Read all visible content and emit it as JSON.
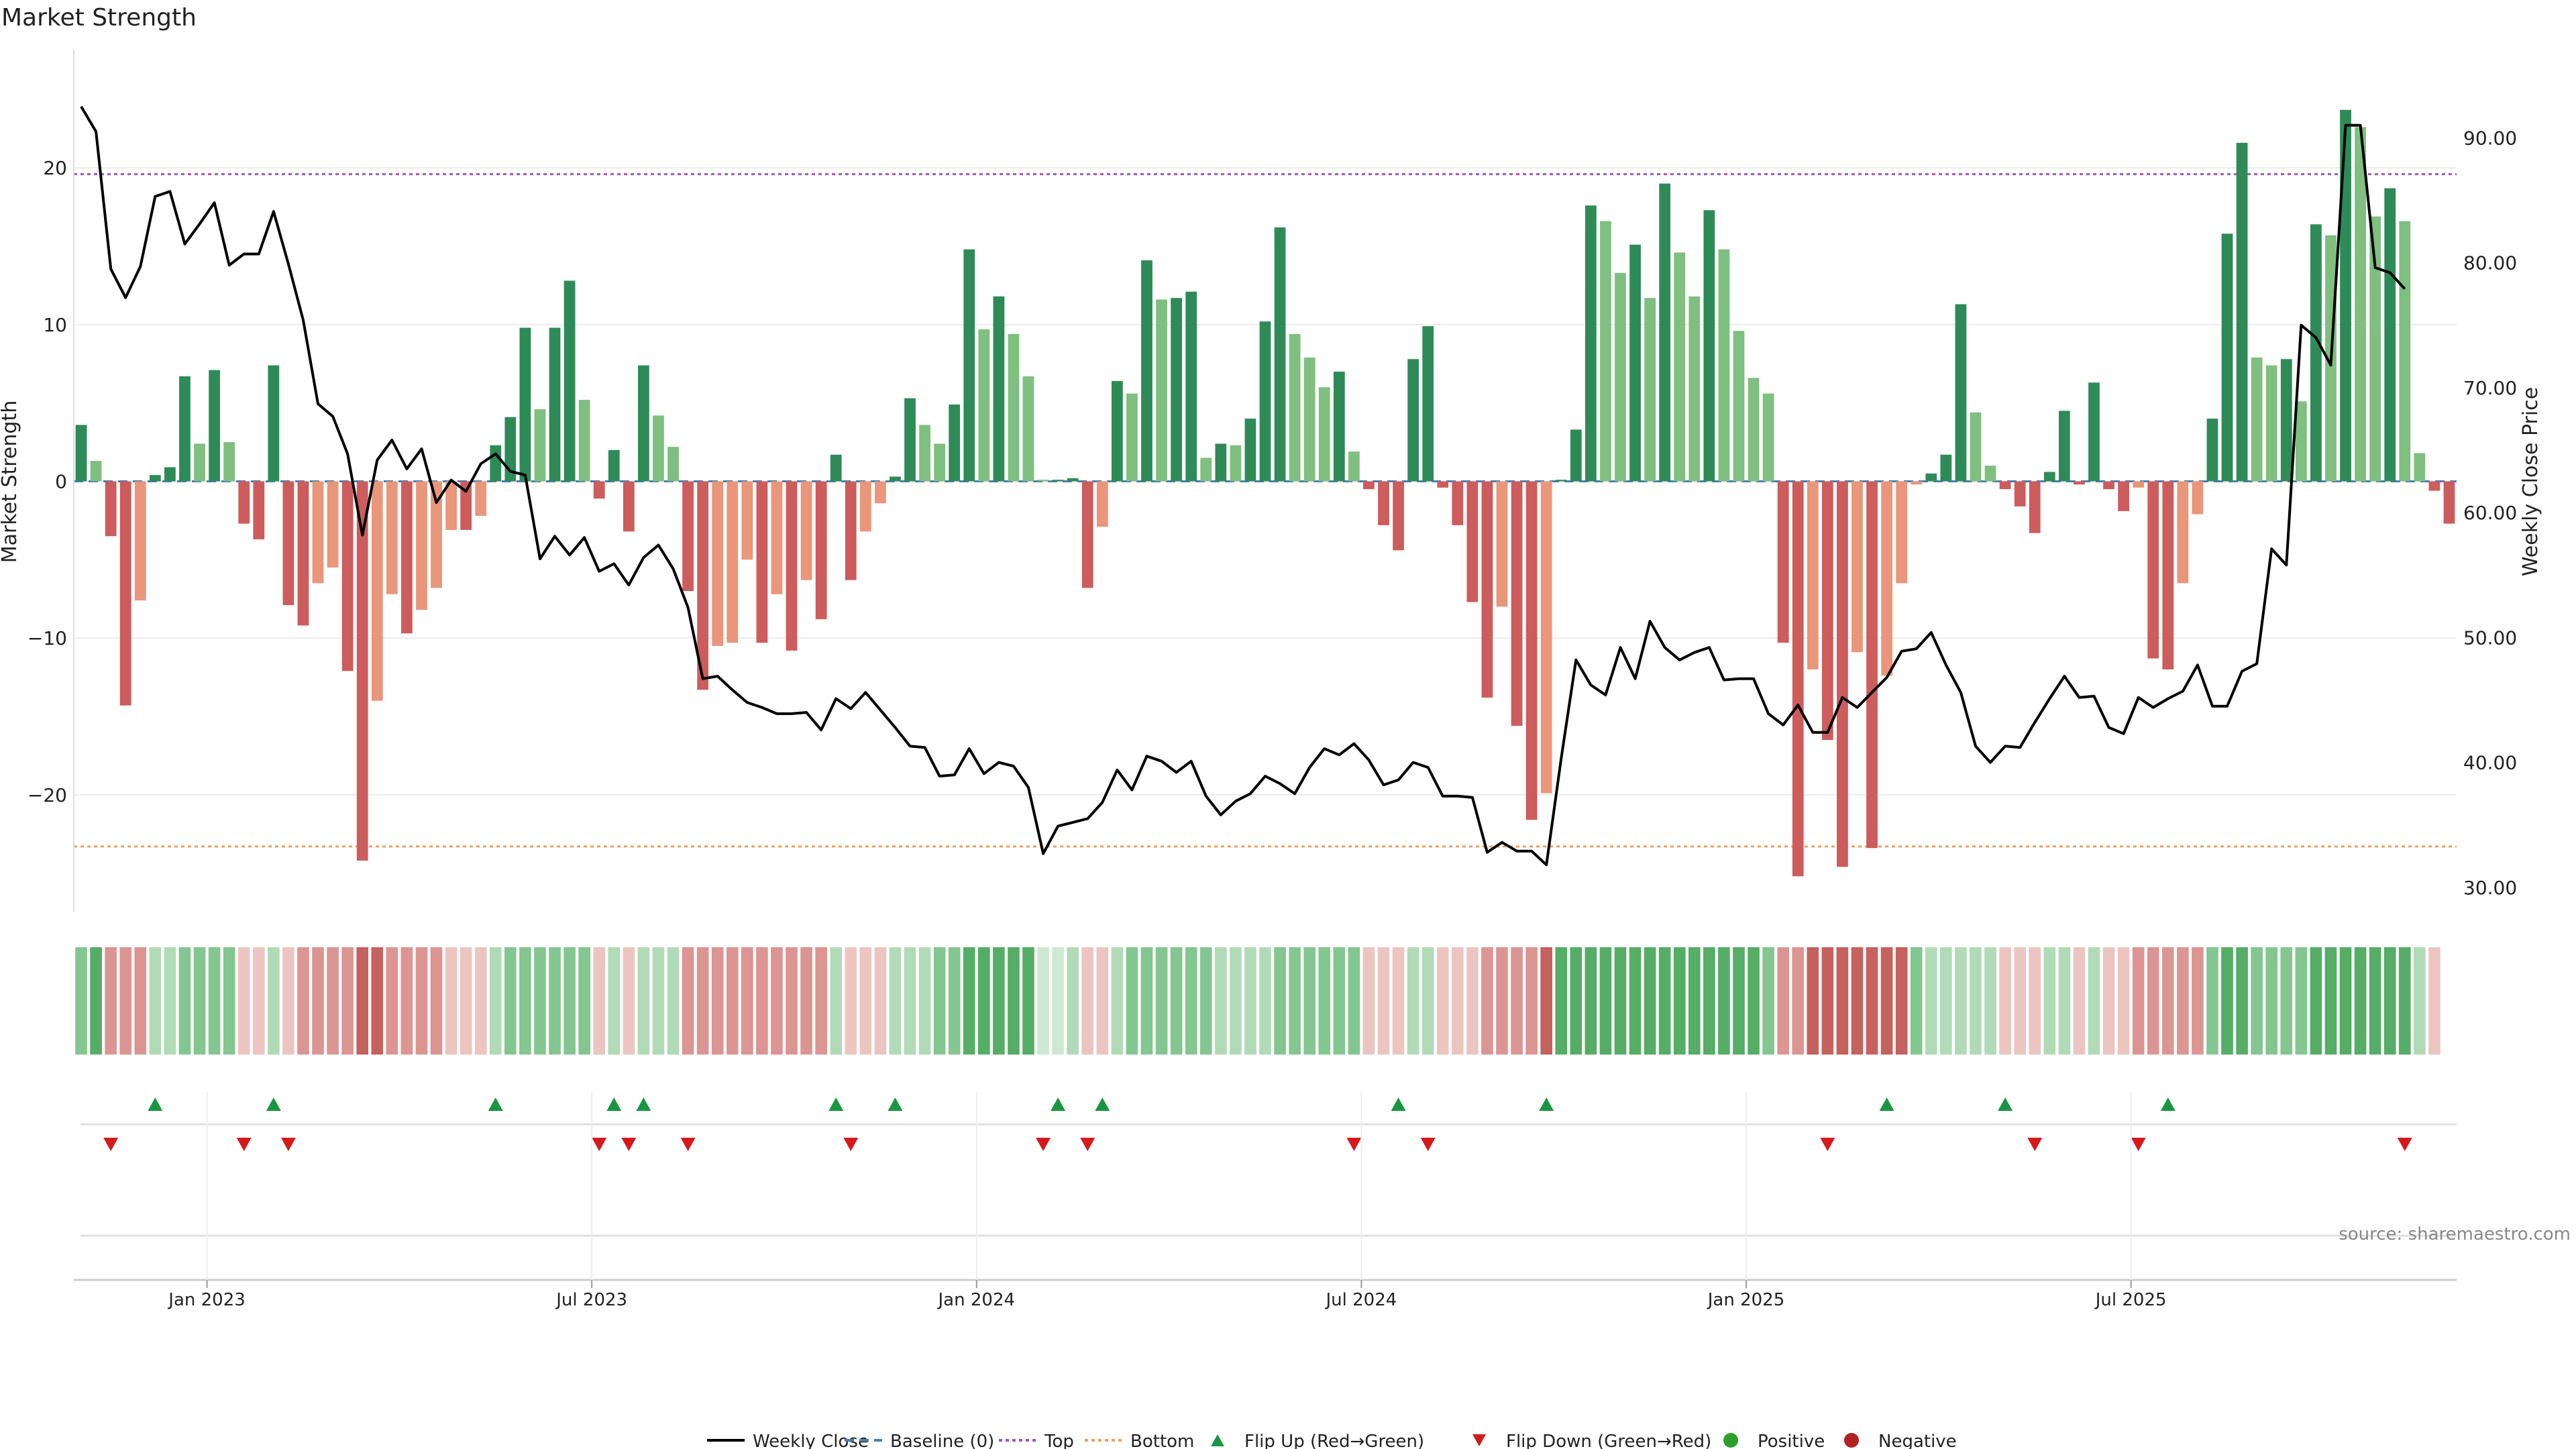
{
  "chart_data": {
    "type": "bar",
    "title": "Market Strength",
    "ylabel": "Market Strength",
    "y2label": "Weekly Close Price",
    "ylim": [
      -27.5,
      27.5
    ],
    "y2lim": [
      28,
      97
    ],
    "yticks": [
      20,
      10,
      0,
      -10,
      -20
    ],
    "y2ticks": [
      30,
      40,
      50,
      60,
      70,
      80,
      90
    ],
    "ytick_labels": [
      "20",
      "10",
      "0",
      "−10",
      "−20"
    ],
    "y2tick_labels": [
      "30.00",
      "40.00",
      "50.00",
      "60.00",
      "70.00",
      "80.00",
      "90.00"
    ],
    "top_threshold": 19.6,
    "bottom_threshold": -23.3,
    "x_ticks": [
      "Jan 2023",
      "Jul 2023",
      "Jan 2024",
      "Jul 2024",
      "Jan 2025",
      "Jul 2025"
    ],
    "grid": true,
    "legend_position": "bottom",
    "source": "source: sharemaestro.com",
    "weeks": 158,
    "strength": [
      3.6,
      1.3,
      -3.5,
      -14.3,
      -7.6,
      0.4,
      0.9,
      6.7,
      2.4,
      7.1,
      2.5,
      -2.7,
      -3.7,
      7.4,
      -7.9,
      -9.2,
      -6.5,
      -5.5,
      -12.1,
      -24.2,
      -14.0,
      -7.2,
      -9.7,
      -8.2,
      -6.8,
      -3.1,
      -3.1,
      -2.2,
      2.3,
      4.1,
      9.8,
      4.6,
      9.8,
      12.8,
      5.2,
      -1.1,
      2.0,
      -3.2,
      7.4,
      4.2,
      2.2,
      -7.0,
      -13.3,
      -10.5,
      -10.3,
      -5.0,
      -10.3,
      -7.2,
      -10.8,
      -6.3,
      -8.8,
      1.7,
      -6.3,
      -3.2,
      -1.4,
      0.3,
      5.3,
      3.6,
      2.4,
      4.9,
      14.8,
      9.7,
      11.8,
      9.4,
      6.7,
      0.1,
      0.1,
      0.2,
      -6.8,
      -2.9,
      6.4,
      5.6,
      14.1,
      11.6,
      11.7,
      12.1,
      1.5,
      2.4,
      2.3,
      4.0,
      10.2,
      16.2,
      9.4,
      7.9,
      6.0,
      7.0,
      1.9,
      -0.5,
      -2.8,
      -4.4,
      7.8,
      9.9,
      -0.4,
      -2.8,
      -7.7,
      -13.8,
      -8.0,
      -15.6,
      -21.6,
      -19.9,
      0.1,
      3.3,
      17.6,
      16.6,
      13.3,
      15.1,
      11.7,
      19.0,
      14.6,
      11.8,
      17.3,
      14.8,
      9.6,
      6.6,
      5.6,
      -10.3,
      -25.2,
      -12.0,
      -16.5,
      -24.6,
      -10.9,
      -23.4,
      -12.4,
      -6.5,
      -0.2,
      0.5,
      1.7,
      11.3,
      4.4,
      1.0,
      -0.5,
      -1.6,
      -3.3,
      0.6,
      4.5,
      -0.2,
      6.3,
      -0.5,
      -1.9,
      -0.4,
      -11.3,
      -12.0,
      -6.5,
      -2.1,
      4.0,
      15.8,
      21.6,
      7.9,
      7.4,
      7.8,
      5.1,
      16.4,
      15.7,
      23.7,
      22.6,
      16.9,
      18.7,
      16.6,
      1.8,
      -0.6,
      -2.7
    ],
    "close": [
      92.5,
      90.5,
      79.5,
      77.2,
      79.7,
      85.3,
      85.7,
      81.5,
      83.1,
      84.8,
      79.8,
      80.7,
      80.7,
      84.1,
      79.9,
      75.4,
      68.7,
      67.7,
      64.7,
      58.2,
      64.2,
      65.8,
      63.5,
      65.1,
      60.8,
      62.6,
      61.7,
      63.9,
      64.7,
      63.3,
      63.0,
      56.3,
      58.1,
      56.6,
      58.0,
      55.3,
      55.9,
      54.2,
      56.4,
      57.4,
      55.5,
      52.4,
      46.7,
      46.9,
      45.8,
      44.8,
      44.4,
      43.9,
      43.9,
      44.0,
      42.6,
      45.1,
      44.3,
      45.6,
      44.2,
      42.8,
      41.3,
      41.2,
      38.9,
      39.0,
      41.1,
      39.1,
      40.0,
      39.7,
      38.0,
      32.7,
      34.9,
      35.2,
      35.5,
      36.8,
      39.4,
      37.8,
      40.5,
      40.1,
      39.2,
      40.1,
      37.3,
      35.8,
      36.9,
      37.5,
      38.9,
      38.3,
      37.5,
      39.6,
      41.1,
      40.6,
      41.5,
      40.2,
      38.2,
      38.6,
      40.0,
      39.6,
      37.3,
      37.3,
      37.2,
      32.8,
      33.6,
      32.9,
      32.9,
      31.8,
      40.3,
      48.2,
      46.2,
      45.4,
      49.2,
      46.7,
      51.3,
      49.2,
      48.2,
      48.8,
      49.2,
      46.6,
      46.7,
      46.7,
      43.9,
      43.0,
      44.6,
      42.4,
      42.4,
      45.2,
      44.4,
      45.6,
      46.8,
      48.9,
      49.1,
      50.4,
      47.8,
      45.6,
      41.3,
      40.0,
      41.3,
      41.2,
      43.2,
      45.1,
      46.9,
      45.2,
      45.3,
      42.8,
      42.3,
      45.2,
      44.4,
      45.1,
      45.7,
      47.8,
      44.5,
      44.5,
      47.3,
      47.9,
      57.1,
      55.8,
      75.0,
      74.0,
      71.8,
      91.0,
      91.0,
      79.6,
      79.2,
      77.9
    ],
    "flip_up": [
      5,
      13,
      28,
      36,
      38,
      51,
      55,
      66,
      69,
      89,
      99,
      122,
      130,
      141
    ],
    "flip_down": [
      2,
      11,
      14,
      35,
      37,
      41,
      52,
      65,
      68,
      86,
      91,
      118,
      132,
      139,
      157
    ],
    "heat_shade": [
      2,
      3,
      2,
      2,
      2,
      1,
      1,
      2,
      2,
      2,
      2,
      1,
      1,
      1,
      1,
      2,
      2,
      2,
      2,
      3,
      3,
      2,
      2,
      2,
      2,
      1,
      1,
      1,
      1,
      2,
      2,
      2,
      2,
      2,
      2,
      1,
      1,
      1,
      1,
      1,
      1,
      2,
      2,
      2,
      2,
      2,
      2,
      2,
      2,
      2,
      2,
      1,
      1,
      1,
      1,
      1,
      1,
      1,
      2,
      2,
      3,
      3,
      3,
      3,
      3,
      0,
      0,
      1,
      1,
      1,
      1,
      2,
      2,
      2,
      2,
      2,
      2,
      1,
      1,
      1,
      1,
      2,
      2,
      2,
      2,
      2,
      2,
      1,
      1,
      1,
      1,
      1,
      1,
      1,
      1,
      2,
      2,
      2,
      2,
      3,
      3,
      3,
      3,
      3,
      3,
      3,
      3,
      3,
      3,
      3,
      3,
      3,
      3,
      3,
      2,
      2,
      2,
      3,
      3,
      3,
      3,
      3,
      3,
      3,
      2,
      1,
      1,
      1,
      1,
      1,
      1,
      1,
      1,
      1,
      1,
      1,
      1,
      1,
      1,
      2,
      2,
      2,
      2,
      2,
      2,
      3,
      3,
      2,
      2,
      2,
      2,
      3,
      3,
      3,
      3,
      3,
      3,
      3,
      1,
      1
    ],
    "heat_sign": [
      1,
      1,
      -1,
      -1,
      -1,
      1,
      1,
      1,
      1,
      1,
      1,
      -1,
      -1,
      1,
      -1,
      -1,
      -1,
      -1,
      -1,
      -1,
      -1,
      -1,
      -1,
      -1,
      -1,
      -1,
      -1,
      -1,
      1,
      1,
      1,
      1,
      1,
      1,
      1,
      -1,
      1,
      -1,
      1,
      1,
      1,
      -1,
      -1,
      -1,
      -1,
      -1,
      -1,
      -1,
      -1,
      -1,
      -1,
      1,
      -1,
      -1,
      -1,
      1,
      1,
      1,
      1,
      1,
      1,
      1,
      1,
      1,
      1,
      1,
      1,
      1,
      -1,
      -1,
      1,
      1,
      1,
      1,
      1,
      1,
      1,
      1,
      1,
      1,
      1,
      1,
      1,
      1,
      1,
      1,
      1,
      -1,
      -1,
      -1,
      1,
      1,
      -1,
      -1,
      -1,
      -1,
      -1,
      -1,
      -1,
      -1,
      1,
      1,
      1,
      1,
      1,
      1,
      1,
      1,
      1,
      1,
      1,
      1,
      1,
      1,
      1,
      -1,
      -1,
      -1,
      -1,
      -1,
      -1,
      -1,
      -1,
      -1,
      1,
      1,
      1,
      1,
      1,
      1,
      -1,
      -1,
      -1,
      1,
      1,
      -1,
      1,
      -1,
      -1,
      -1,
      -1,
      -1,
      -1,
      -1,
      1,
      1,
      1,
      1,
      1,
      1,
      1,
      1,
      1,
      1,
      1,
      1,
      1,
      1,
      1,
      -1,
      -1
    ],
    "legend": [
      "Weekly Close",
      "Baseline (0)",
      "Top",
      "Bottom",
      "Flip Up (Red→Green)",
      "Flip Down (Green→Red)",
      "Positive",
      "Negative"
    ],
    "colors": {
      "pos_dark": "#2e8b57",
      "pos_light": "#7fbf7f",
      "neg_dark": "#cd5c5c",
      "neg_light": "#e9967a",
      "top_line": "#9b59b6",
      "bottom_line": "#f0a060",
      "baseline": "#4a7fb0",
      "close_line": "#000000",
      "flip_up": "#1a9641",
      "flip_down": "#d7191c",
      "positive_dot": "#2ca02c",
      "negative_dot": "#b22222",
      "heat_pos": [
        "#cfe8d2",
        "#b0dbb6",
        "#84c690",
        "#55ad66"
      ],
      "heat_neg": [
        "#f3dcd8",
        "#ecc5c1",
        "#dc9592",
        "#c6625d"
      ]
    }
  }
}
